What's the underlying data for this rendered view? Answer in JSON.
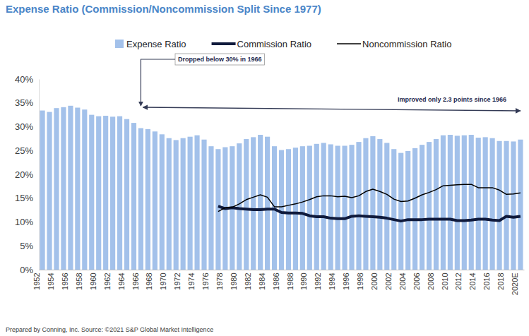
{
  "chart_data": {
    "type": "bar",
    "title": "Expense Ratio (Commission/Noncommission Split Since 1977)",
    "source": "Prepared by Conning, Inc. Source: ©2021 S&P Global Market Intelligence",
    "annotations": [
      "Dropped below 30% in 1966",
      "Improved only 2.3 points since 1966"
    ],
    "categories": [
      "1952",
      null,
      "1954",
      null,
      "1956",
      null,
      "1958",
      null,
      "1960",
      null,
      "1962",
      null,
      "1964",
      null,
      "1966",
      null,
      "1968",
      null,
      "1970",
      null,
      "1972",
      null,
      "1974",
      null,
      "1976",
      null,
      "1978",
      null,
      "1980",
      null,
      "1982",
      null,
      "1984",
      null,
      "1986",
      null,
      "1988",
      null,
      "1990",
      null,
      "1992",
      null,
      "1994",
      null,
      "1996",
      null,
      "1998",
      null,
      "2000",
      null,
      "2002",
      null,
      "2004",
      null,
      "2006",
      null,
      "2008",
      null,
      "2010",
      null,
      "2012",
      null,
      "2014",
      null,
      "2016",
      null,
      "2018",
      null,
      "2020E"
    ],
    "series": [
      {
        "name": "Expense Ratio",
        "type": "bar",
        "color": "#a3c1ea",
        "values": [
          33.4,
          33.1,
          33.9,
          34.1,
          34.4,
          34.0,
          33.6,
          32.5,
          32.2,
          32.3,
          32.1,
          32.2,
          31.6,
          30.8,
          29.7,
          29.5,
          29.0,
          28.4,
          27.6,
          27.2,
          27.6,
          27.9,
          28.2,
          27.3,
          25.9,
          25.3,
          25.7,
          25.9,
          26.5,
          27.4,
          27.8,
          28.3,
          27.9,
          25.9,
          25.1,
          25.3,
          25.6,
          25.9,
          26.0,
          26.4,
          26.6,
          26.3,
          26.0,
          26.0,
          26.2,
          26.8,
          27.6,
          28.0,
          27.4,
          26.6,
          25.3,
          24.5,
          24.9,
          25.5,
          26.2,
          26.8,
          27.4,
          28.2,
          28.3,
          28.1,
          28.2,
          28.3,
          27.7,
          27.8,
          27.6,
          27.0,
          27.0,
          26.9,
          27.3
        ]
      },
      {
        "name": "Commission Ratio",
        "type": "line",
        "color": "#0f1a3c",
        "line_style": "thick",
        "values": [
          null,
          null,
          null,
          null,
          null,
          null,
          null,
          null,
          null,
          null,
          null,
          null,
          null,
          null,
          null,
          null,
          null,
          null,
          null,
          null,
          null,
          null,
          null,
          null,
          null,
          13.3,
          12.8,
          13.0,
          12.8,
          12.7,
          12.6,
          12.6,
          12.7,
          12.7,
          12.0,
          11.9,
          11.9,
          11.8,
          11.3,
          11.1,
          11.1,
          10.8,
          10.7,
          10.7,
          11.2,
          11.3,
          11.2,
          11.1,
          11.0,
          10.8,
          10.5,
          10.2,
          10.5,
          10.5,
          10.5,
          10.6,
          10.6,
          10.6,
          10.6,
          10.3,
          10.3,
          10.4,
          10.6,
          10.6,
          10.4,
          10.3,
          11.2,
          11.0,
          11.2
        ]
      },
      {
        "name": "Noncommission Ratio",
        "type": "line",
        "color": "#000000",
        "line_style": "thin",
        "values": [
          null,
          null,
          null,
          null,
          null,
          null,
          null,
          null,
          null,
          null,
          null,
          null,
          null,
          null,
          null,
          null,
          null,
          null,
          null,
          null,
          null,
          null,
          null,
          null,
          null,
          12.2,
          13.0,
          13.1,
          13.8,
          14.7,
          15.2,
          15.7,
          15.2,
          13.2,
          13.2,
          13.5,
          13.8,
          14.2,
          14.7,
          15.3,
          15.5,
          15.5,
          15.3,
          15.4,
          15.1,
          15.5,
          16.4,
          16.9,
          16.4,
          15.8,
          14.8,
          14.3,
          14.4,
          15.0,
          15.7,
          16.2,
          16.8,
          17.6,
          17.7,
          17.8,
          17.9,
          17.9,
          17.2,
          17.2,
          17.2,
          16.7,
          15.8,
          15.9,
          16.1
        ]
      }
    ],
    "ylim": [
      0,
      40
    ],
    "yticks": [
      {
        "value": 0,
        "label": "0%"
      },
      {
        "value": 5,
        "label": "5%"
      },
      {
        "value": 10,
        "label": "10%"
      },
      {
        "value": 15,
        "label": "15%"
      },
      {
        "value": 20,
        "label": "20%"
      },
      {
        "value": 25,
        "label": "25%"
      },
      {
        "value": 30,
        "label": "30%"
      },
      {
        "value": 35,
        "label": "35%"
      },
      {
        "value": 40,
        "label": "40%"
      }
    ],
    "grid": false,
    "legend": "top"
  }
}
